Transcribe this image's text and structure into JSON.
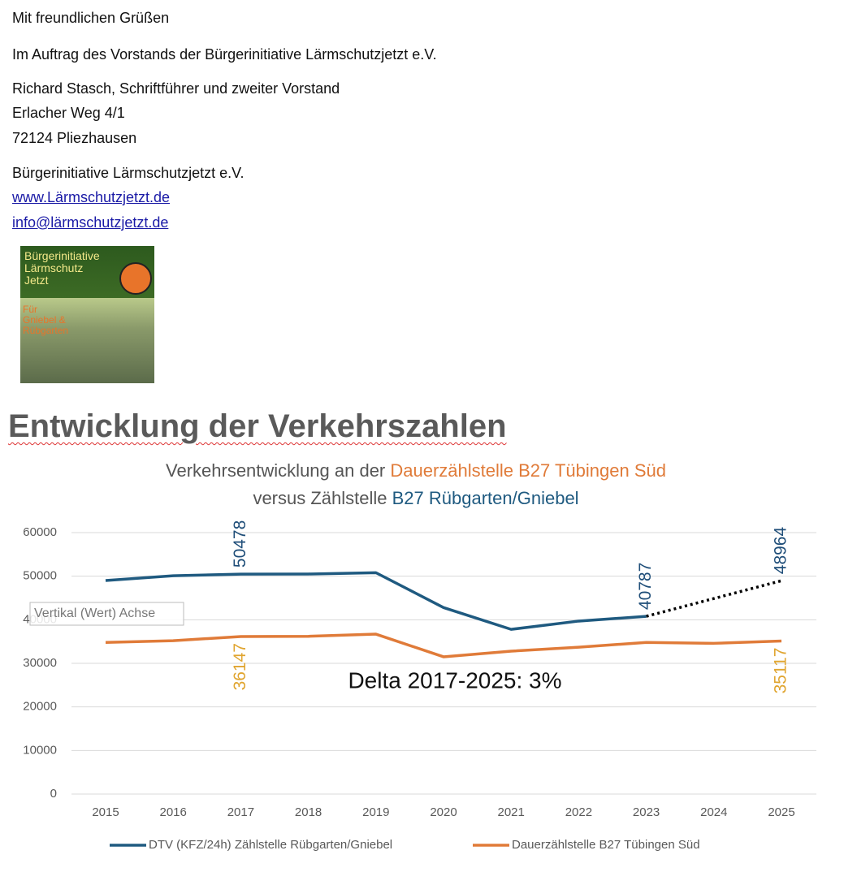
{
  "letter": {
    "closing": "Mit freundlichen Grüßen",
    "mandate": "Im Auftrag des Vorstands der Bürgerinitiative Lärmschutzjetzt e.V.",
    "signature": [
      "Richard Stasch, Schriftführer und zweiter Vorstand",
      "Erlacher Weg 4/1",
      "72124 Pliezhausen"
    ],
    "organization": "Bürgerinitiative Lärmschutzjetzt e.V.",
    "website": "www.Lärmschutzjetzt.de",
    "email": "info@lärmschutzjetzt.de"
  },
  "logo": {
    "lines": [
      "Bürgerinitiative",
      "Lärmschutz",
      "Jetzt"
    ],
    "subtitle": [
      "Für",
      "Gniebel &",
      "Rübgarten"
    ]
  },
  "heading": "Entwicklung der Verkehrszahlen",
  "chart_data": {
    "type": "line",
    "title_parts": [
      [
        {
          "text": "Verkehrsentwicklung an der ",
          "color": "#555555"
        },
        {
          "text": "Dauerzählstelle B27 Tübingen Süd",
          "color": "#e07b39"
        }
      ],
      [
        {
          "text": "versus Zählstelle ",
          "color": "#555555"
        },
        {
          "text": "B27 Rübgarten/Gniebel",
          "color": "#1f5a80"
        }
      ]
    ],
    "categories": [
      "2015",
      "2016",
      "2017",
      "2018",
      "2019",
      "2020",
      "2021",
      "2022",
      "2023",
      "2024",
      "2025"
    ],
    "series": [
      {
        "name": "DTV (KFZ/24h) Zählstelle Rübgarten/Gniebel",
        "color": "#1f5a80",
        "label_color": "#1f4e79",
        "gap_style": "dotted",
        "labeled": [
          2,
          8,
          10
        ],
        "values": [
          49000,
          50100,
          50478,
          50500,
          50800,
          42800,
          37800,
          39700,
          40787,
          null,
          48964
        ]
      },
      {
        "name": "Dauerzählstelle B27 Tübingen Süd",
        "color": "#e07b39",
        "label_color": "#e0a530",
        "labeled": [
          2,
          10
        ],
        "values": [
          34800,
          35200,
          36147,
          36200,
          36700,
          31500,
          32800,
          33700,
          34800,
          34600,
          35117
        ]
      }
    ],
    "ylim": [
      0,
      60000
    ],
    "yticks": [
      0,
      10000,
      20000,
      30000,
      40000,
      50000,
      60000
    ],
    "grid": true,
    "annotation": "Delta 2017-2025: 3%",
    "tooltip": "Vertikal (Wert) Achse",
    "legend": "bottom"
  }
}
